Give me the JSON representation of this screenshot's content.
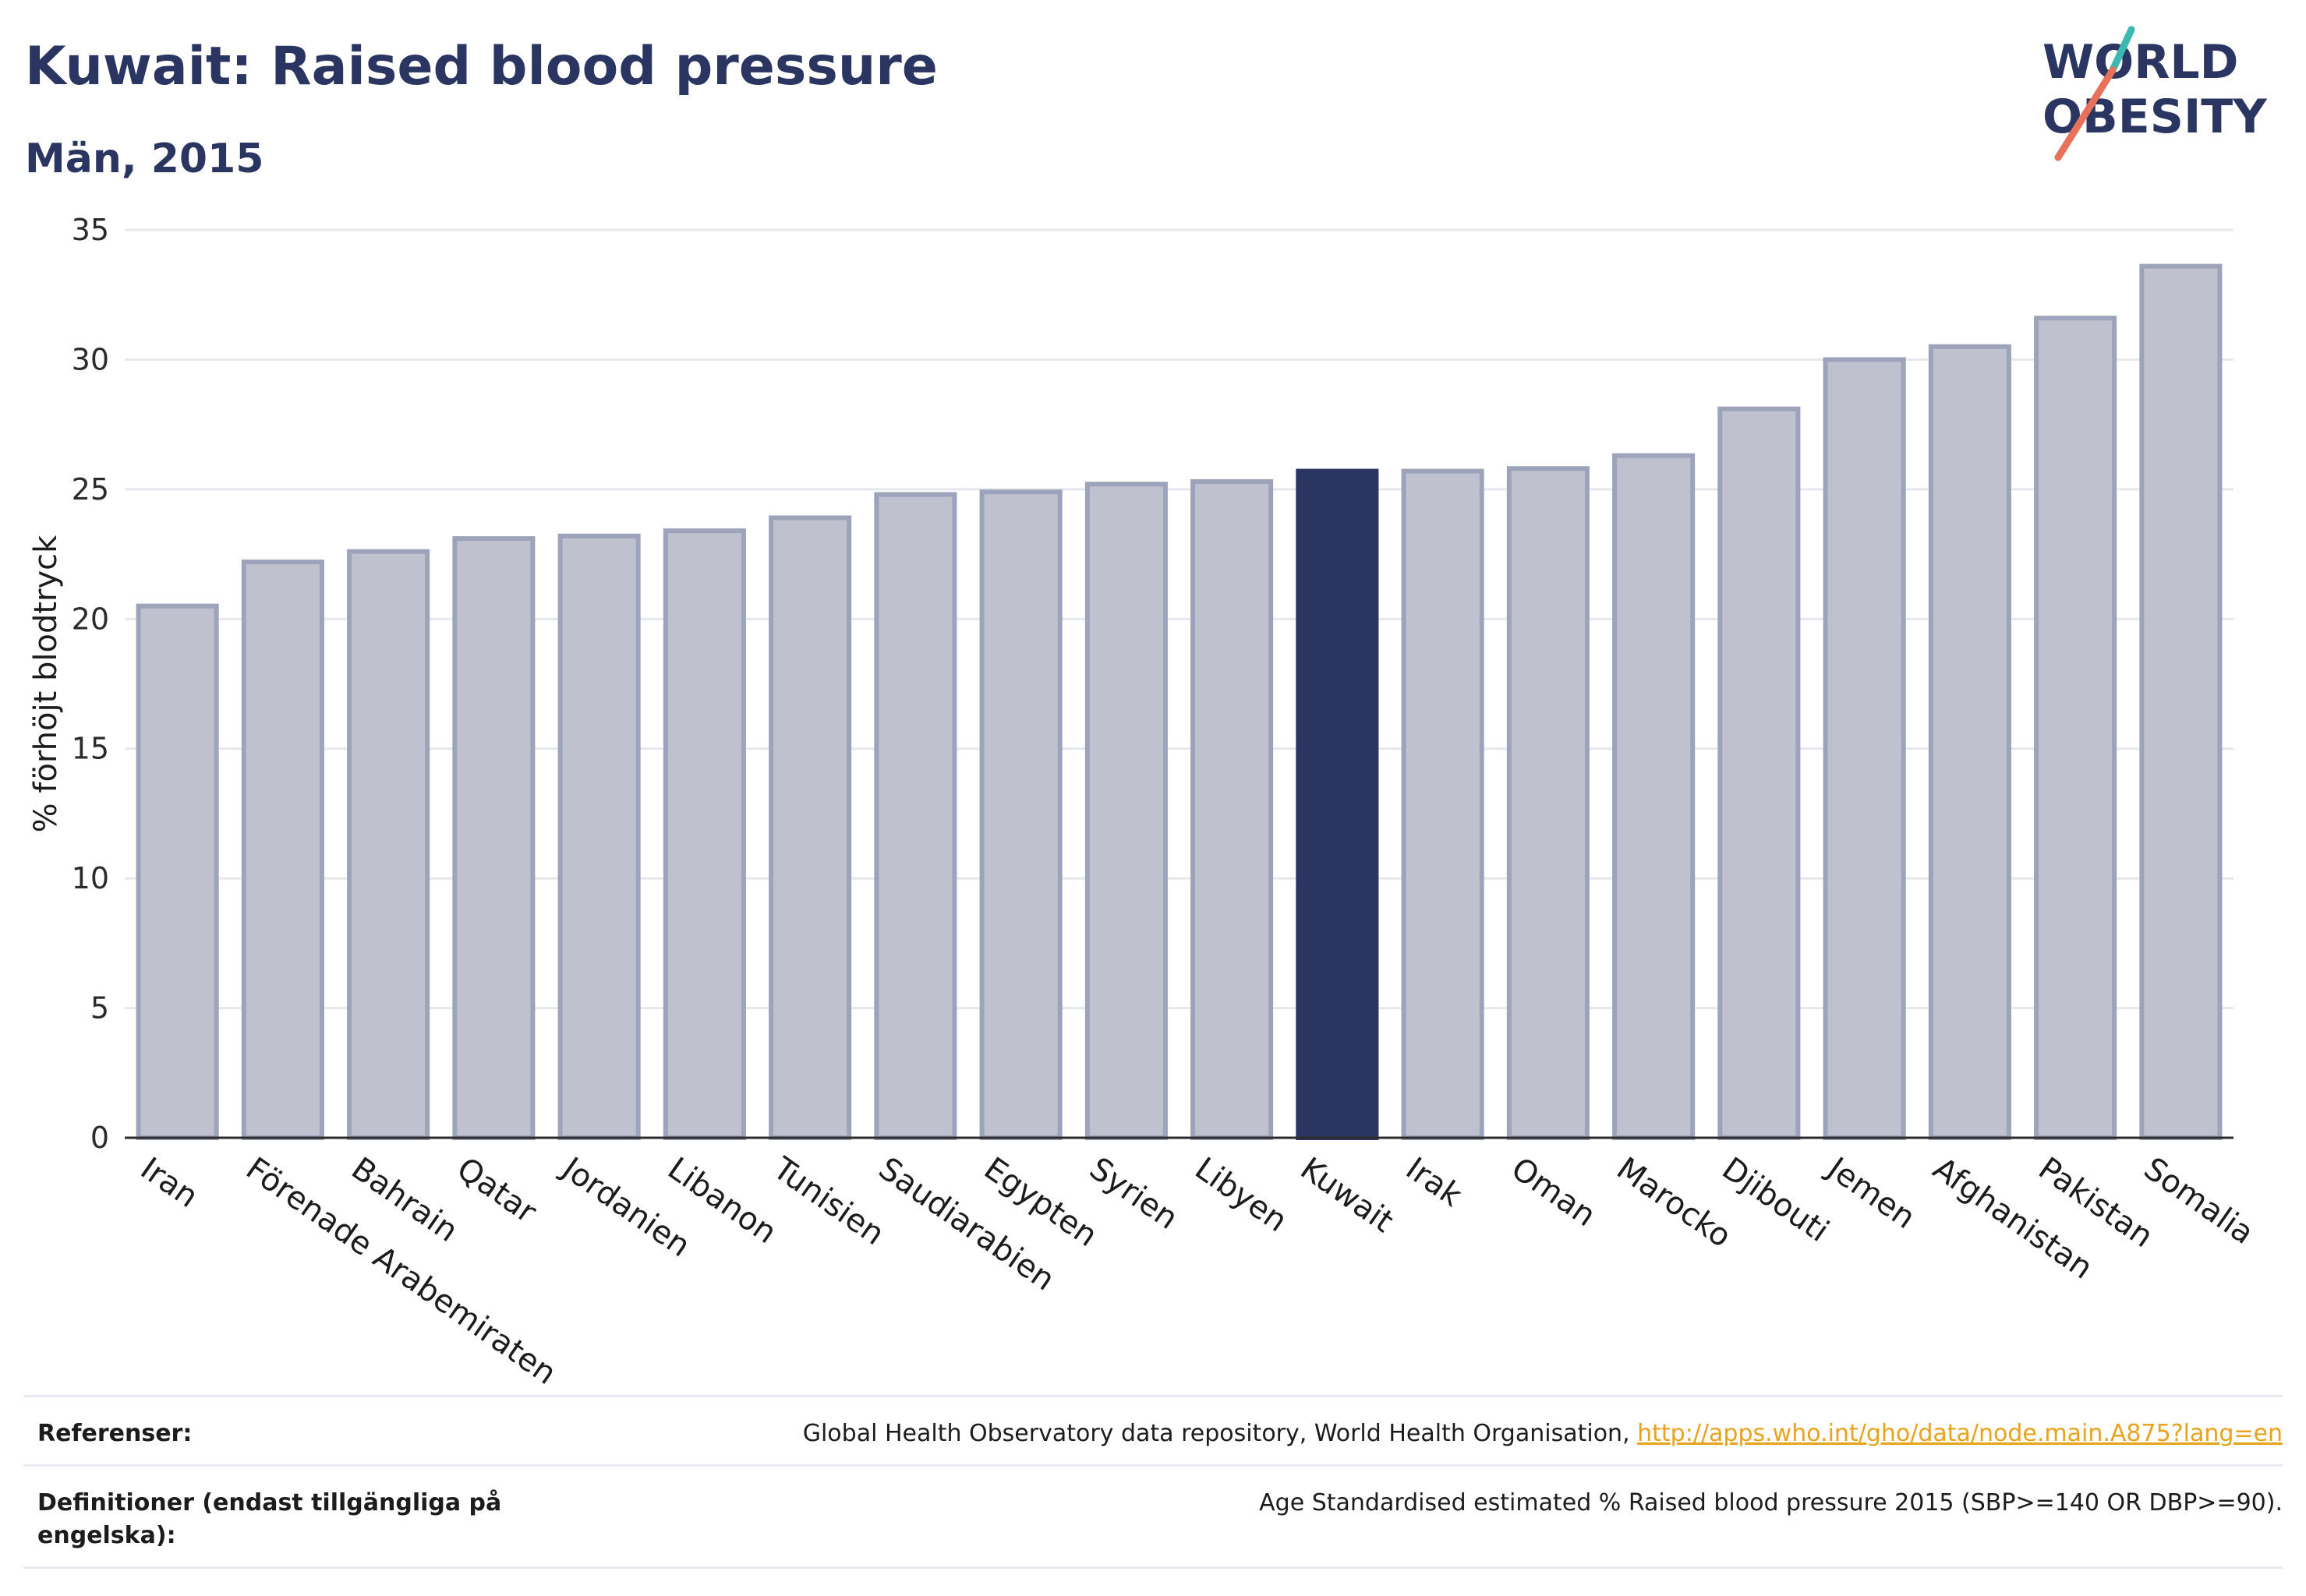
{
  "title": "Kuwait: Raised blood pressure",
  "subtitle": "Män, 2015",
  "logo": {
    "line1": "WORLD",
    "line2": "OBESITY"
  },
  "colors": {
    "highlight": "#2a3561",
    "bar": "#bfc2ce",
    "bar_edge": "#9da3ba",
    "grid": "#e6e8ee",
    "link": "#e8a31c"
  },
  "chart_data": {
    "type": "bar",
    "title": "Kuwait: Raised blood pressure",
    "subtitle": "Män, 2015",
    "ylabel": "% förhöjt blodtryck",
    "xlabel": "",
    "ylim": [
      0,
      35
    ],
    "yticks": [
      0,
      5,
      10,
      15,
      20,
      25,
      30,
      35
    ],
    "grid": true,
    "highlight": "Kuwait",
    "categories": [
      "Iran",
      "Förenade Arabemiraten",
      "Bahrain",
      "Qatar",
      "Jordanien",
      "Libanon",
      "Tunisien",
      "Saudiarabien",
      "Egypten",
      "Syrien",
      "Libyen",
      "Kuwait",
      "Irak",
      "Oman",
      "Marocko",
      "Djibouti",
      "Jemen",
      "Afghanistan",
      "Pakistan",
      "Somalia"
    ],
    "values": [
      20.5,
      22.2,
      22.6,
      23.1,
      23.2,
      23.4,
      23.9,
      24.8,
      24.9,
      25.2,
      25.3,
      25.7,
      25.7,
      25.8,
      26.3,
      28.1,
      30.0,
      30.5,
      31.6,
      33.6
    ]
  },
  "footer": {
    "references_label": "Referenser:",
    "references_text": "Global Health Observatory data repository, World Health Organisation, ",
    "references_link": "http://apps.who.int/gho/data/node.main.A875?lang=en",
    "definitions_label": "Definitioner (endast tillgängliga på engelska):",
    "definitions_text": "Age Standardised estimated % Raised blood pressure 2015 (SBP>=140 OR DBP>=90)."
  }
}
